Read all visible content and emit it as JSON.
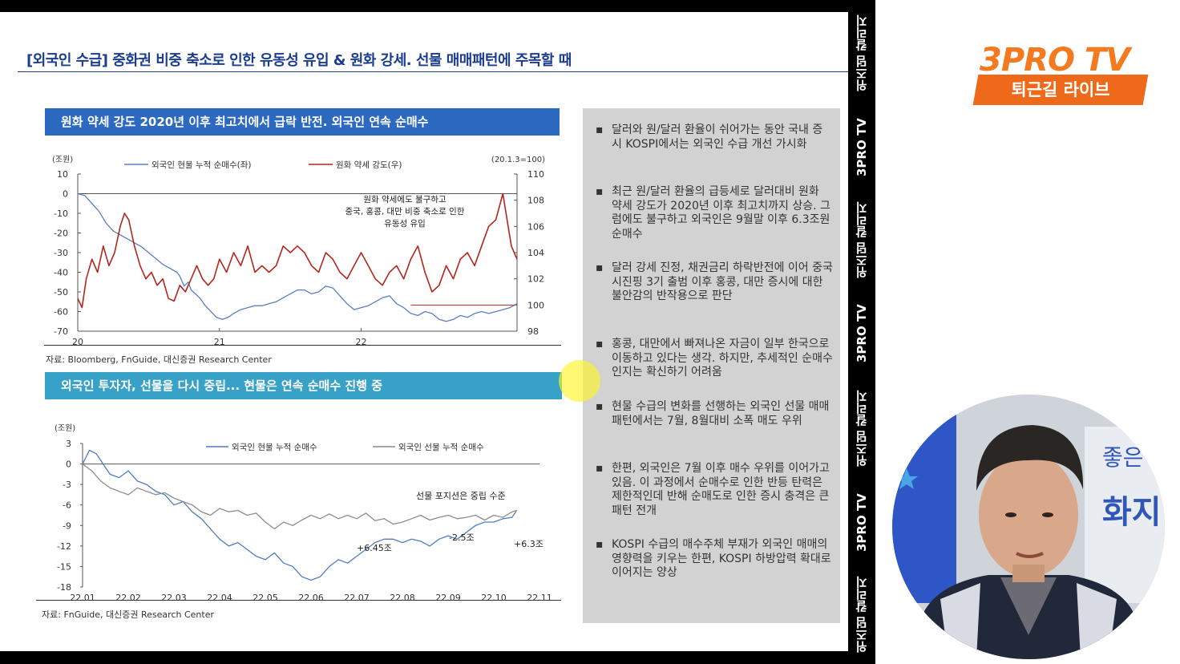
{
  "slide": {
    "title": "[외국인 수급] 중화권 비중 축소로 인한 유동성 유입 & 원화 강세. 선물 매매패턴에 주목할 때",
    "banner1": "원화 약세 강도 2020년 이후 최고치에서 급락 반전. 외국인 연속 순매수",
    "banner2": "외국인 투자자, 선물을 다시 중립... 현물은 연속 순매수 진행 중",
    "source1": "자료: Bloomberg, FnGuide, 대신증권 Research Center",
    "source2": "자료: FnGuide, 대신증권 Research Center"
  },
  "chart_data": [
    {
      "type": "line",
      "left_unit": "(조원)",
      "right_unit": "(20.1.3=100)",
      "annotation": [
        "원화 약세에도 불구하고",
        "중국, 홍콩, 대만 비중 축소로 인한",
        "유동성 유입"
      ],
      "x_ticks": [
        "20",
        "21",
        "22"
      ],
      "y_left_ticks": [
        "10",
        "0",
        "-10",
        "-20",
        "-30",
        "-40",
        "-50",
        "-60",
        "-70"
      ],
      "y_right_ticks": [
        "110",
        "108",
        "106",
        "104",
        "102",
        "100",
        "98"
      ],
      "ylim_left": [
        -70,
        10
      ],
      "ylim_right": [
        98,
        110
      ],
      "reference_line_right": 100,
      "series": [
        {
          "name": "외국인 현물 누적 순매수(좌)",
          "axis": "left",
          "color": "#5b7fbd",
          "points": [
            [
              0,
              0
            ],
            [
              0.05,
              -1
            ],
            [
              0.1,
              -5
            ],
            [
              0.15,
              -9
            ],
            [
              0.2,
              -15
            ],
            [
              0.25,
              -19
            ],
            [
              0.3,
              -21
            ],
            [
              0.35,
              -23
            ],
            [
              0.4,
              -25
            ],
            [
              0.45,
              -27
            ],
            [
              0.5,
              -30
            ],
            [
              0.55,
              -33
            ],
            [
              0.6,
              -36
            ],
            [
              0.65,
              -38
            ],
            [
              0.7,
              -40
            ],
            [
              0.72,
              -42
            ],
            [
              0.75,
              -47
            ],
            [
              0.78,
              -45
            ],
            [
              0.8,
              -49
            ],
            [
              0.83,
              -51
            ],
            [
              0.86,
              -53
            ],
            [
              0.9,
              -57
            ],
            [
              0.94,
              -60
            ],
            [
              0.98,
              -63
            ],
            [
              1.02,
              -64
            ],
            [
              1.06,
              -63
            ],
            [
              1.1,
              -61
            ],
            [
              1.15,
              -59
            ],
            [
              1.2,
              -58
            ],
            [
              1.25,
              -57
            ],
            [
              1.3,
              -57
            ],
            [
              1.35,
              -56
            ],
            [
              1.4,
              -55
            ],
            [
              1.45,
              -53
            ],
            [
              1.5,
              -51
            ],
            [
              1.55,
              -49
            ],
            [
              1.6,
              -49
            ],
            [
              1.65,
              -51
            ],
            [
              1.7,
              -50
            ],
            [
              1.75,
              -47
            ],
            [
              1.8,
              -48
            ],
            [
              1.85,
              -52
            ],
            [
              1.9,
              -56
            ],
            [
              1.95,
              -59
            ],
            [
              2.0,
              -58
            ],
            [
              2.05,
              -57
            ],
            [
              2.1,
              -55
            ],
            [
              2.15,
              -53
            ],
            [
              2.2,
              -52
            ],
            [
              2.25,
              -56
            ],
            [
              2.3,
              -58
            ],
            [
              2.35,
              -61
            ],
            [
              2.4,
              -62
            ],
            [
              2.45,
              -60
            ],
            [
              2.5,
              -61
            ],
            [
              2.55,
              -64
            ],
            [
              2.6,
              -65
            ],
            [
              2.65,
              -64
            ],
            [
              2.7,
              -62
            ],
            [
              2.75,
              -63
            ],
            [
              2.8,
              -61
            ],
            [
              2.85,
              -60
            ],
            [
              2.9,
              -61
            ],
            [
              2.95,
              -60
            ],
            [
              3.0,
              -59
            ],
            [
              3.05,
              -58
            ],
            [
              3.1,
              -56
            ]
          ]
        },
        {
          "name": "원화 약세 강도(우)",
          "axis": "right",
          "color": "#b3261e",
          "points": [
            [
              0,
              100.5
            ],
            [
              0.03,
              99.8
            ],
            [
              0.06,
              102
            ],
            [
              0.1,
              103.5
            ],
            [
              0.14,
              102.5
            ],
            [
              0.18,
              104.5
            ],
            [
              0.22,
              103
            ],
            [
              0.26,
              104
            ],
            [
              0.3,
              106
            ],
            [
              0.33,
              107
            ],
            [
              0.36,
              106.5
            ],
            [
              0.4,
              104.5
            ],
            [
              0.44,
              103
            ],
            [
              0.48,
              102
            ],
            [
              0.52,
              102.5
            ],
            [
              0.56,
              101.5
            ],
            [
              0.6,
              102
            ],
            [
              0.64,
              100.5
            ],
            [
              0.68,
              100.3
            ],
            [
              0.72,
              101.5
            ],
            [
              0.76,
              101
            ],
            [
              0.8,
              102
            ],
            [
              0.84,
              103
            ],
            [
              0.88,
              102
            ],
            [
              0.92,
              101.5
            ],
            [
              0.96,
              102
            ],
            [
              1.0,
              103.5
            ],
            [
              1.05,
              102.5
            ],
            [
              1.1,
              104
            ],
            [
              1.15,
              103
            ],
            [
              1.2,
              104.5
            ],
            [
              1.25,
              102.5
            ],
            [
              1.3,
              103
            ],
            [
              1.35,
              102.5
            ],
            [
              1.4,
              103
            ],
            [
              1.45,
              104.5
            ],
            [
              1.5,
              104
            ],
            [
              1.55,
              104.5
            ],
            [
              1.6,
              104
            ],
            [
              1.65,
              103
            ],
            [
              1.7,
              102.5
            ],
            [
              1.75,
              104
            ],
            [
              1.8,
              103.5
            ],
            [
              1.85,
              102.5
            ],
            [
              1.9,
              102
            ],
            [
              1.95,
              103
            ],
            [
              2.0,
              104
            ],
            [
              2.05,
              103
            ],
            [
              2.1,
              102
            ],
            [
              2.15,
              101.5
            ],
            [
              2.2,
              102.5
            ],
            [
              2.25,
              103
            ],
            [
              2.3,
              102
            ],
            [
              2.35,
              103.5
            ],
            [
              2.4,
              104.5
            ],
            [
              2.45,
              102.5
            ],
            [
              2.5,
              101
            ],
            [
              2.55,
              101.5
            ],
            [
              2.6,
              103
            ],
            [
              2.65,
              102
            ],
            [
              2.7,
              103.5
            ],
            [
              2.75,
              104
            ],
            [
              2.8,
              103
            ],
            [
              2.85,
              104.5
            ],
            [
              2.9,
              106
            ],
            [
              2.95,
              106.5
            ],
            [
              3.0,
              108.5
            ],
            [
              3.03,
              106.5
            ],
            [
              3.06,
              104.5
            ],
            [
              3.1,
              103.5
            ]
          ]
        }
      ]
    },
    {
      "type": "line",
      "unit": "(조원)",
      "x_ticks": [
        "22.01",
        "22.02",
        "22.03",
        "22.04",
        "22.05",
        "22.06",
        "22.07",
        "22.08",
        "22.09",
        "22.10",
        "22.11"
      ],
      "y_ticks": [
        "3",
        "0",
        "-3",
        "-6",
        "-9",
        "-12",
        "-15",
        "-18"
      ],
      "ylim": [
        -18,
        3
      ],
      "annotations": [
        "선물 포지션은 중립 수준",
        "+6.45조",
        "-2.5조",
        "+6.3조"
      ],
      "series": [
        {
          "name": "외국인 현물 누적 순매수",
          "color": "#4f7cc0",
          "points": [
            [
              0,
              0
            ],
            [
              0.15,
              2
            ],
            [
              0.3,
              1.5
            ],
            [
              0.45,
              0
            ],
            [
              0.6,
              -1.5
            ],
            [
              0.8,
              -2
            ],
            [
              1.0,
              -1
            ],
            [
              1.2,
              -2.5
            ],
            [
              1.4,
              -3
            ],
            [
              1.6,
              -4
            ],
            [
              1.8,
              -4.5
            ],
            [
              2.0,
              -6
            ],
            [
              2.2,
              -5.5
            ],
            [
              2.4,
              -7
            ],
            [
              2.6,
              -8
            ],
            [
              2.8,
              -9.5
            ],
            [
              3.0,
              -11
            ],
            [
              3.2,
              -12
            ],
            [
              3.4,
              -11.5
            ],
            [
              3.6,
              -12.5
            ],
            [
              3.8,
              -13.5
            ],
            [
              4.0,
              -14
            ],
            [
              4.2,
              -13
            ],
            [
              4.4,
              -14.5
            ],
            [
              4.6,
              -15
            ],
            [
              4.8,
              -16.5
            ],
            [
              5.0,
              -17
            ],
            [
              5.2,
              -16.5
            ],
            [
              5.4,
              -15
            ],
            [
              5.6,
              -14
            ],
            [
              5.8,
              -14.5
            ],
            [
              6.0,
              -13.5
            ],
            [
              6.2,
              -12.5
            ],
            [
              6.4,
              -11.5
            ],
            [
              6.6,
              -11
            ],
            [
              6.8,
              -11
            ],
            [
              7.0,
              -11.5
            ],
            [
              7.2,
              -11
            ],
            [
              7.4,
              -11.3
            ],
            [
              7.6,
              -12
            ],
            [
              7.8,
              -11
            ],
            [
              8.0,
              -10.5
            ],
            [
              8.2,
              -11
            ],
            [
              8.4,
              -10
            ],
            [
              8.6,
              -9
            ],
            [
              8.8,
              -8.5
            ],
            [
              9.0,
              -8.5
            ],
            [
              9.2,
              -8
            ],
            [
              9.4,
              -7.8
            ],
            [
              9.5,
              -6.8
            ]
          ]
        },
        {
          "name": "외국인 선물 누적 순매수",
          "color": "#8c8c8c",
          "points": [
            [
              0,
              0
            ],
            [
              0.2,
              -1
            ],
            [
              0.4,
              -2.5
            ],
            [
              0.6,
              -3.5
            ],
            [
              0.8,
              -4
            ],
            [
              1.0,
              -4.5
            ],
            [
              1.2,
              -3.5
            ],
            [
              1.4,
              -4
            ],
            [
              1.6,
              -4.5
            ],
            [
              1.8,
              -4.2
            ],
            [
              2.0,
              -5
            ],
            [
              2.2,
              -5.5
            ],
            [
              2.4,
              -6
            ],
            [
              2.6,
              -7
            ],
            [
              2.8,
              -7.5
            ],
            [
              3.0,
              -6.5
            ],
            [
              3.2,
              -7
            ],
            [
              3.4,
              -6.8
            ],
            [
              3.6,
              -7.5
            ],
            [
              3.8,
              -7.2
            ],
            [
              4.0,
              -8.5
            ],
            [
              4.2,
              -9.5
            ],
            [
              4.4,
              -8.5
            ],
            [
              4.6,
              -9
            ],
            [
              4.8,
              -8.2
            ],
            [
              5.0,
              -7.5
            ],
            [
              5.2,
              -8
            ],
            [
              5.4,
              -7.3
            ],
            [
              5.6,
              -8
            ],
            [
              5.8,
              -7.5
            ],
            [
              6.0,
              -8
            ],
            [
              6.2,
              -7.2
            ],
            [
              6.4,
              -8.3
            ],
            [
              6.6,
              -8
            ],
            [
              6.8,
              -8.8
            ],
            [
              7.0,
              -8.5
            ],
            [
              7.2,
              -8
            ],
            [
              7.4,
              -7.5
            ],
            [
              7.6,
              -8.2
            ],
            [
              7.8,
              -7.8
            ],
            [
              8.0,
              -7.5
            ],
            [
              8.2,
              -8
            ],
            [
              8.4,
              -7.8
            ],
            [
              8.6,
              -7.5
            ],
            [
              8.8,
              -8.2
            ],
            [
              9.0,
              -7.5
            ],
            [
              9.2,
              -7.8
            ],
            [
              9.4,
              -7
            ],
            [
              9.5,
              -6.8
            ]
          ]
        }
      ]
    }
  ],
  "panel": {
    "bullets": [
      "달러와 원/달러 환율이 쉬어가는 동안 국내 증시 KOSPI에서는 외국인 수급 개선 가시화",
      "최근 원/달러 환율의 급등세로 달러대비 원화 약세 강도가 2020년 이후 최고치까지 상승. 그럼에도 불구하고 외국인은 9월말 이후 6.3조원 순매수",
      "달러 강세 진정, 채권금리 하락반전에 이어 중국 시진핑 3기 출범 이후 홍콩, 대만 증시에 대한 불안감의 반작용으로 판단",
      "홍콩, 대만에서 빠져나온 자금이 일부 한국으로 이동하고 있다는 생각. 하지만, 추세적인 순매수인지는 확신하기 어려움",
      "현물 수급의 변화를 선행하는 외국인 선물 매매패턴에서는 7월, 8월대비 소폭 매도 우위",
      "한편, 외국인은 7월 이후 매수 우위를 이어가고 있음. 이 과정에서 순매수로 인한 반등 탄력은 제한적인데 반해 순매도로 인한 증시 충격은 큰 패턴 전개",
      "KOSPI 수급의 매수주체 부재가 외국인 매매의 영향력을 키우는 한편, KOSPI 하방압력 확대로 이어지는 양상"
    ],
    "bullet_symbol": "▪"
  },
  "side_strip": [
    "위즈덤 칼리지",
    "3PRO TV",
    "위즈덤 칼리지",
    "3PRO TV",
    "위즈덤 칼리지",
    "3PRO TV",
    "위즈덤 칼리지"
  ],
  "logo": {
    "title": "3PRO TV",
    "subtitle": "퇴근길 라이브"
  },
  "webcam": {
    "backdrop_text": "좋은",
    "backdrop_text2": "화지"
  }
}
